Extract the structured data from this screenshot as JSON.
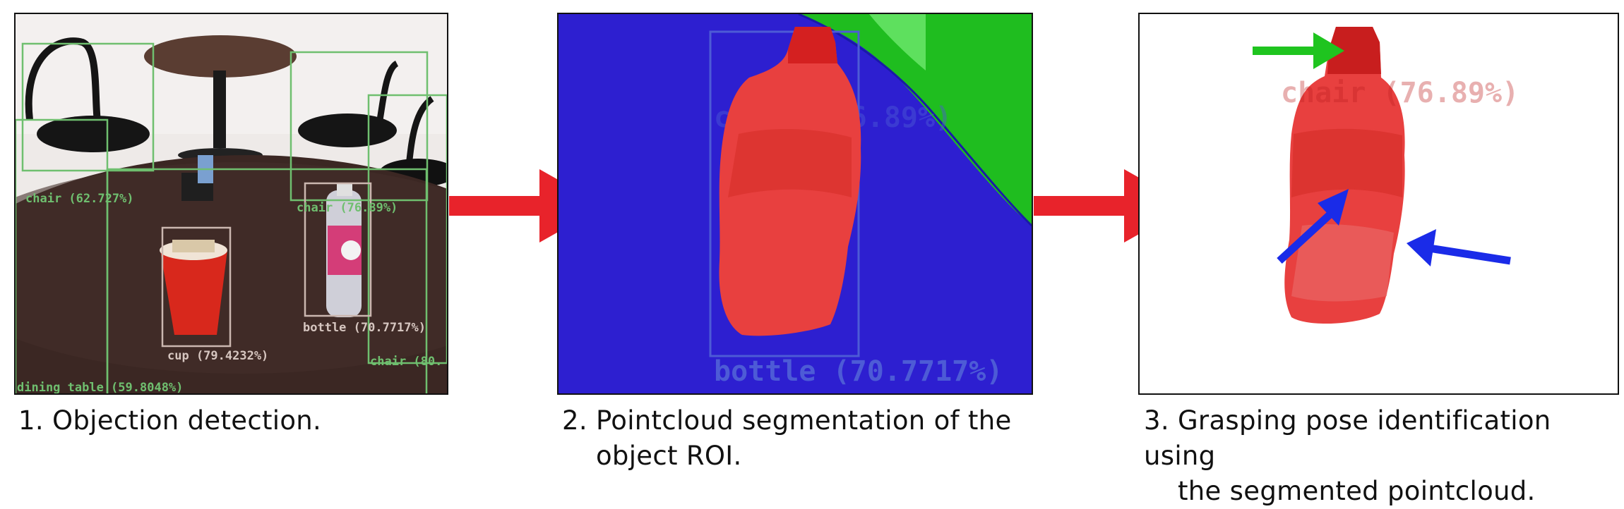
{
  "panels": [
    {
      "caption_line1": "1. Objection detection.",
      "detections": [
        {
          "label": "chair (62.727%)"
        },
        {
          "label": "chair (76.89%)"
        },
        {
          "label": "cup (79.4232%)"
        },
        {
          "label": "bottle (70.7717%)"
        },
        {
          "label": "chair (80."
        },
        {
          "label": "dining table (59.8048%)"
        }
      ]
    },
    {
      "caption_line1": "2. Pointcloud segmentation of the",
      "caption_line2": "object ROI.",
      "segmentation_label": "bottle (70.7717%)",
      "ghost_label": "chair (76.89%)"
    },
    {
      "caption_line1": "3. Grasping pose identification using",
      "caption_line2": "the segmented pointcloud.",
      "ghost_label": "chair (76.89%)"
    }
  ],
  "colors": {
    "flow_arrow": "#e8232b",
    "detection_box": "#6fbf6f",
    "segment_object": "#e8403f",
    "segment_background": "#2d1fd0",
    "segment_other": "#1fbd1f",
    "grasp_top_arrow": "#1fc41f",
    "grasp_side_arrows": "#1a2be8"
  },
  "icons": [
    "flow-arrow-right-icon",
    "green-arrow-icon",
    "blue-arrow-icon"
  ]
}
